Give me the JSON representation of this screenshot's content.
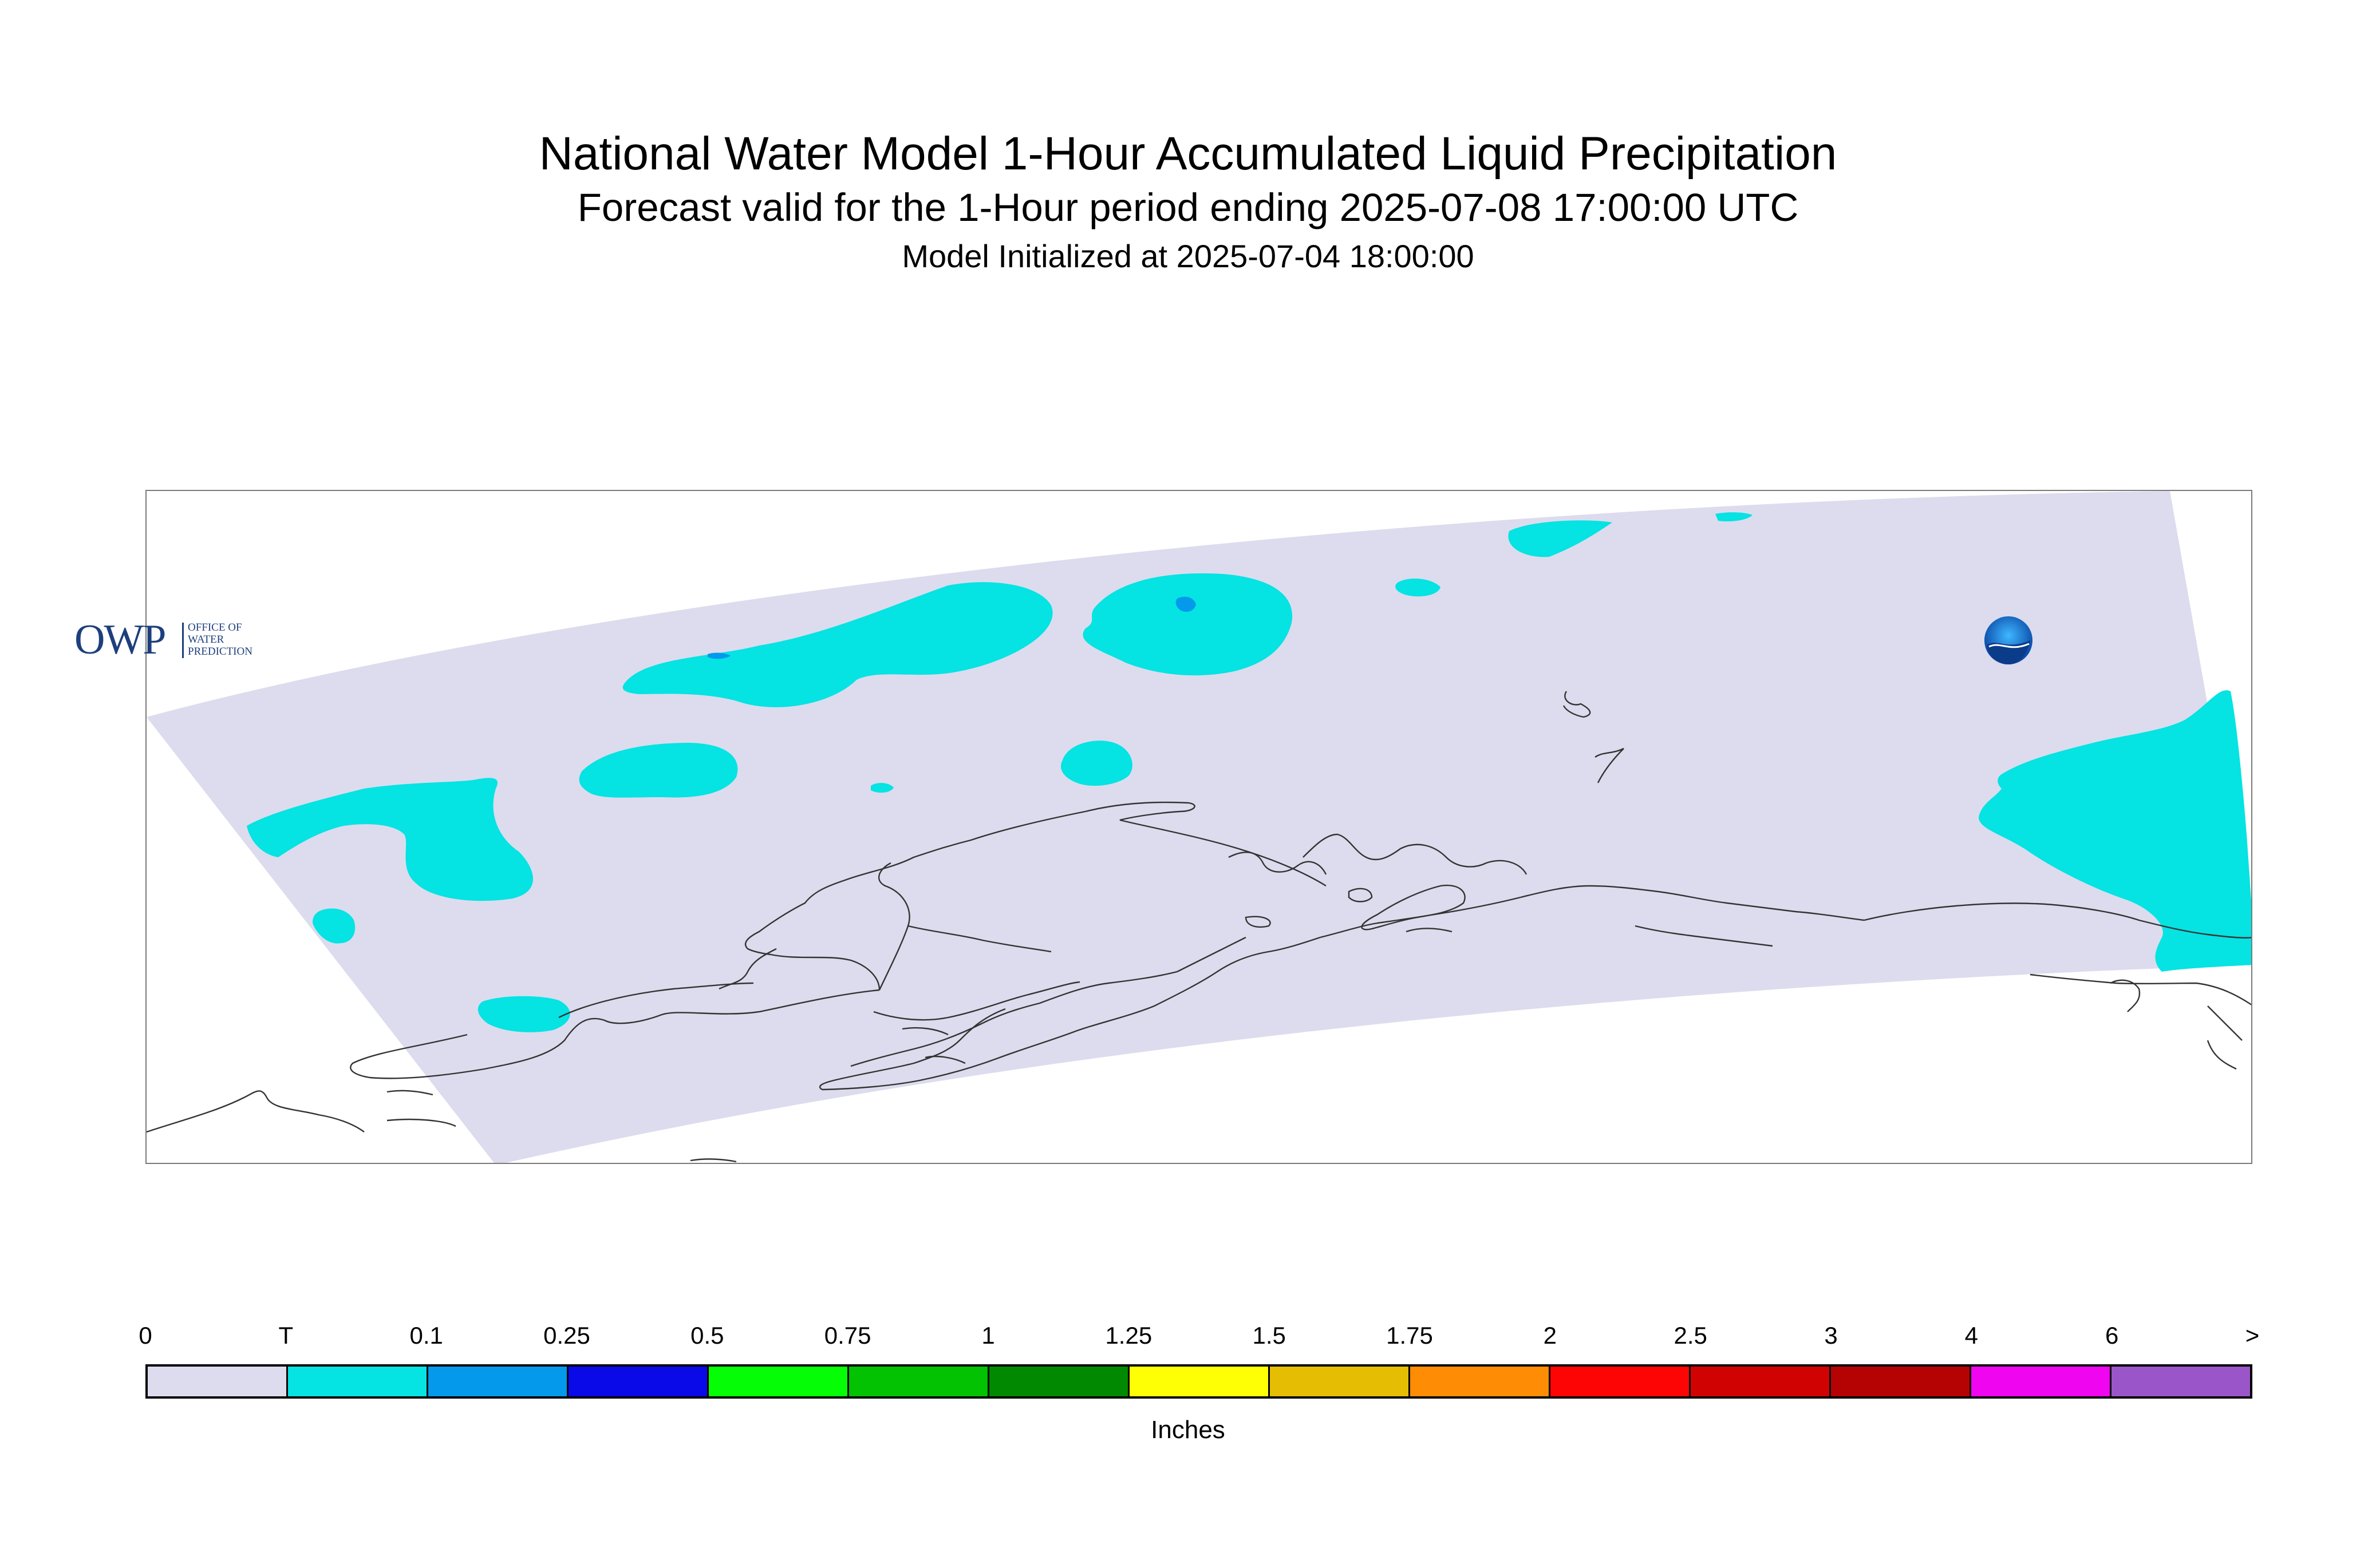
{
  "title": "National Water Model 1-Hour Accumulated Liquid Precipitation",
  "subtitle": "Forecast valid for the 1-Hour period ending 2025-07-08 17:00:00 UTC",
  "init_line": "Model Initialized at 2025-07-04 18:00:00",
  "logos": {
    "owp_big": "OWP",
    "owp_lines": [
      "OFFICE OF",
      "WATER",
      "PREDICTION"
    ],
    "noaa": "NOAA"
  },
  "colors": {
    "domain": "#dcdcee",
    "trace": "#05e3e3",
    "light_blue": "#0599ec",
    "coast": "#333333"
  },
  "legend": {
    "units": "Inches",
    "ticks": [
      "0",
      "T",
      "0.1",
      "0.25",
      "0.5",
      "0.75",
      "1",
      "1.25",
      "1.5",
      "1.75",
      "2",
      "2.5",
      "3",
      "4",
      "6",
      ">"
    ],
    "colors": [
      "#dcdcee",
      "#05e3e3",
      "#0599ec",
      "#0a0ae8",
      "#05fe05",
      "#02c202",
      "#018a01",
      "#fefe05",
      "#e5bd02",
      "#fe8d05",
      "#fe0505",
      "#d10202",
      "#b50202",
      "#ef05ef",
      "#9a56c9"
    ]
  }
}
